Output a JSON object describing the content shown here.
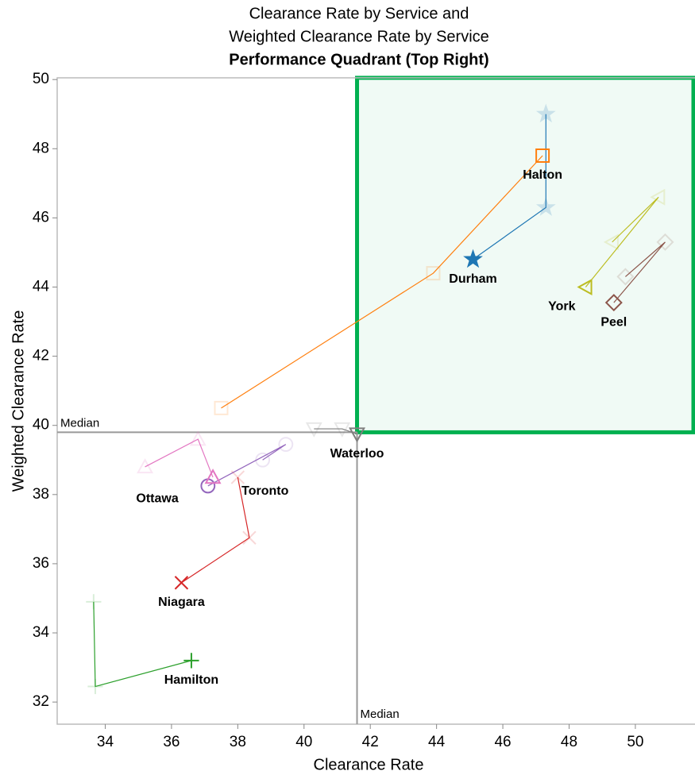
{
  "chart_data": {
    "type": "scatter",
    "title": "Clearance Rate by Service and",
    "subtitle": "Weighted Clearance Rate by Service",
    "subtitle2": "Performance Quadrant (Top Right)",
    "x_label": "Clearance Rate",
    "y_label": "Weighted Clearance Rate",
    "xlim": [
      32.55,
      51.8
    ],
    "ylim": [
      31.36,
      50.05
    ],
    "xticks": [
      34,
      36,
      38,
      40,
      42,
      44,
      46,
      48,
      50
    ],
    "yticks": [
      32,
      34,
      36,
      38,
      40,
      42,
      44,
      46,
      48,
      50
    ],
    "median_x": 41.6,
    "median_y": 39.8,
    "median_label": "Median",
    "highlight_quadrant": "top-right",
    "highlight_color": "#00b050",
    "series": [
      {
        "name": "Durham",
        "color": "#1f77b4",
        "marker": "star",
        "x": [
          47.3,
          47.3,
          45.1
        ],
        "y": [
          49.0,
          46.3,
          44.8
        ]
      },
      {
        "name": "Halton",
        "color": "#ff7f0e",
        "marker": "square",
        "x": [
          37.5,
          43.9,
          47.2
        ],
        "y": [
          40.5,
          44.4,
          47.8
        ]
      },
      {
        "name": "York",
        "color": "#bcbd22",
        "marker": "triangle-left",
        "x": [
          49.3,
          50.7,
          48.5
        ],
        "y": [
          45.3,
          46.6,
          44.0
        ]
      },
      {
        "name": "Peel",
        "color": "#8c564b",
        "marker": "diamond",
        "x": [
          49.7,
          50.9,
          49.35
        ],
        "y": [
          44.3,
          45.3,
          43.55
        ]
      },
      {
        "name": "Waterloo",
        "color": "#7f7f7f",
        "marker": "triangle-down",
        "x": [
          40.3,
          41.15,
          41.6
        ],
        "y": [
          39.9,
          39.9,
          39.75
        ]
      },
      {
        "name": "Toronto",
        "color": "#9467bd",
        "marker": "circle",
        "x": [
          38.75,
          39.45,
          37.1
        ],
        "y": [
          39.0,
          39.45,
          38.25
        ]
      },
      {
        "name": "Ottawa",
        "color": "#e377c2",
        "marker": "triangle-up",
        "x": [
          35.2,
          36.8,
          37.25
        ],
        "y": [
          38.8,
          39.6,
          38.5
        ]
      },
      {
        "name": "Niagara",
        "color": "#d62728",
        "marker": "x",
        "x": [
          38.0,
          38.35,
          36.3
        ],
        "y": [
          38.5,
          36.75,
          35.45
        ]
      },
      {
        "name": "Hamilton",
        "color": "#2ca02c",
        "marker": "plus",
        "x": [
          33.65,
          33.7,
          36.6
        ],
        "y": [
          34.9,
          32.45,
          33.2
        ]
      }
    ]
  }
}
